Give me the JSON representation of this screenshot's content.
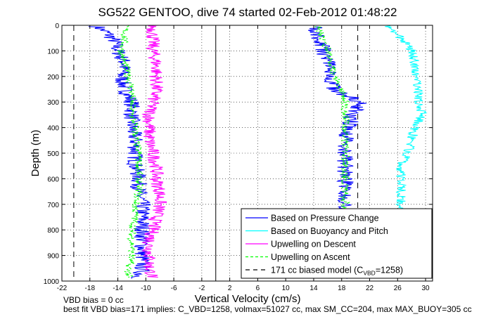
{
  "chart_data": {
    "type": "line",
    "title": "SG522 GENTOO, dive 74 started 02-Feb-2012 01:48:22",
    "xlabel": "Vertical Velocity (cm/s)",
    "ylabel": "Depth (m)",
    "xlim": [
      -22,
      31
    ],
    "ylim": [
      1000,
      0
    ],
    "y_reversed": true,
    "grid": true,
    "xticks": [
      "-22",
      "-18",
      "-14",
      "-10",
      "-6",
      "-2",
      "2",
      "6",
      "10",
      "14",
      "18",
      "22",
      "26",
      "30"
    ],
    "yticks": [
      "0",
      "100",
      "200",
      "300",
      "400",
      "500",
      "600",
      "700",
      "800",
      "900",
      "1000"
    ],
    "legend_position": "bottom-right",
    "reference_lines": [
      {
        "x": 0,
        "style": "solid",
        "color": "#000000"
      },
      {
        "x": -20.3,
        "style": "dashed",
        "color": "#000000"
      },
      {
        "x": 20.3,
        "style": "dashed",
        "color": "#000000"
      }
    ],
    "series": [
      {
        "name": "Based on Pressure Change",
        "color": "#0000ff",
        "style": "solid",
        "noise": 1.2,
        "segments": [
          {
            "depth": [
              5,
              30,
              60,
              100,
              150,
              200,
              250,
              300,
              350,
              400,
              450,
              500,
              550,
              600,
              650,
              700,
              750,
              800,
              850,
              900,
              950,
              990
            ],
            "x": [
              -17,
              -15.5,
              -14.5,
              -14,
              -13,
              -13.5,
              -13,
              -12,
              -12,
              -12,
              -11.5,
              -11.5,
              -11.5,
              -11,
              -11,
              -10.5,
              -10.5,
              -10.5,
              -10.5,
              -10.5,
              -10.5,
              -11
            ]
          },
          {
            "depth": [
              990,
              950,
              900,
              850,
              800,
              750,
              700,
              650,
              600,
              550,
              500,
              450,
              400,
              350,
              300,
              250,
              200,
              150,
              100,
              60,
              30,
              5
            ],
            "x": [
              18.5,
              18.5,
              18.5,
              18.5,
              18.5,
              18.5,
              18.5,
              18.5,
              18.5,
              18.5,
              18.5,
              18.5,
              19,
              19.5,
              20.5,
              17,
              16.5,
              16,
              15.5,
              15,
              14.5,
              14
            ]
          }
        ]
      },
      {
        "name": "Based on Buoyancy and Pitch",
        "color": "#00ffff",
        "style": "solid",
        "noise": 0.7,
        "segments": [
          {
            "depth": [
              720,
              650,
              600,
              550,
              500,
              450,
              400,
              350,
              300,
              250,
              200,
              150,
              100,
              60,
              30,
              10,
              0
            ],
            "x": [
              26.5,
              26.5,
              26.5,
              26.5,
              27.5,
              28,
              28.5,
              29.5,
              29,
              29,
              28.5,
              28.5,
              28,
              27,
              25.5,
              24.5,
              25
            ]
          }
        ]
      },
      {
        "name": "Upwelling on Descent",
        "color": "#ff00ff",
        "style": "solid",
        "noise": 1.0,
        "segments": [
          {
            "depth": [
              0,
              50,
              100,
              150,
              200,
              250,
              300,
              350,
              400,
              450,
              500,
              550,
              600,
              650,
              700,
              750,
              800,
              850,
              900,
              950,
              985
            ],
            "x": [
              -9,
              -9,
              -9,
              -8.5,
              -8.5,
              -8.5,
              -9,
              -9.5,
              -9.5,
              -9.5,
              -9,
              -8.5,
              -8.5,
              -8,
              -8,
              -8.5,
              -9,
              -9.5,
              -9.5,
              -9.5,
              -9
            ]
          }
        ]
      },
      {
        "name": "Upwelling on Ascent",
        "color": "#00ff00",
        "style": "dashed",
        "noise": 0.6,
        "segments": [
          {
            "depth": [
              0,
              50,
              100,
              150,
              200,
              250,
              300,
              350,
              400,
              450,
              500,
              550,
              600,
              650,
              700,
              750,
              800,
              850,
              900,
              950,
              985
            ],
            "x": [
              -13,
              -13,
              -13.5,
              -13,
              -12.5,
              -12,
              -12,
              -12,
              -11.5,
              -11.5,
              -11,
              -11,
              -11,
              -11,
              -11.5,
              -11.5,
              -12,
              -12,
              -12,
              -12.5,
              -12.5
            ]
          },
          {
            "depth": [
              990,
              900,
              800,
              700,
              600,
              500,
              400,
              300,
              250,
              200,
              150,
              100,
              60,
              30,
              5
            ],
            "x": [
              18,
              18,
              18,
              18.5,
              18.5,
              18.5,
              18.5,
              18.5,
              18,
              17,
              16.5,
              16,
              15.5,
              15,
              14.5
            ]
          }
        ]
      },
      {
        "name": "171 cc biased model (C_VBD=1258)",
        "color": "#000000",
        "style": "dashed",
        "noise": 0,
        "segments": []
      }
    ],
    "legend": {
      "entries": [
        {
          "prefix": "Based on Pressure Change",
          "sub": "",
          "suffix": ""
        },
        {
          "prefix": "Based on Buoyancy and Pitch",
          "sub": "",
          "suffix": ""
        },
        {
          "prefix": "Upwelling on Descent",
          "sub": "",
          "suffix": ""
        },
        {
          "prefix": "Upwelling on Ascent",
          "sub": "",
          "suffix": ""
        },
        {
          "prefix": "171 cc biased model (C",
          "sub": "VBD",
          "suffix": "=1258)"
        }
      ]
    },
    "footnotes": [
      "VBD bias = 0 cc",
      "best fit VBD bias=171 implies: C_VBD=1258, volmax=51027 cc, max SM_CC=204, max MAX_BUOY=305 cc"
    ]
  }
}
